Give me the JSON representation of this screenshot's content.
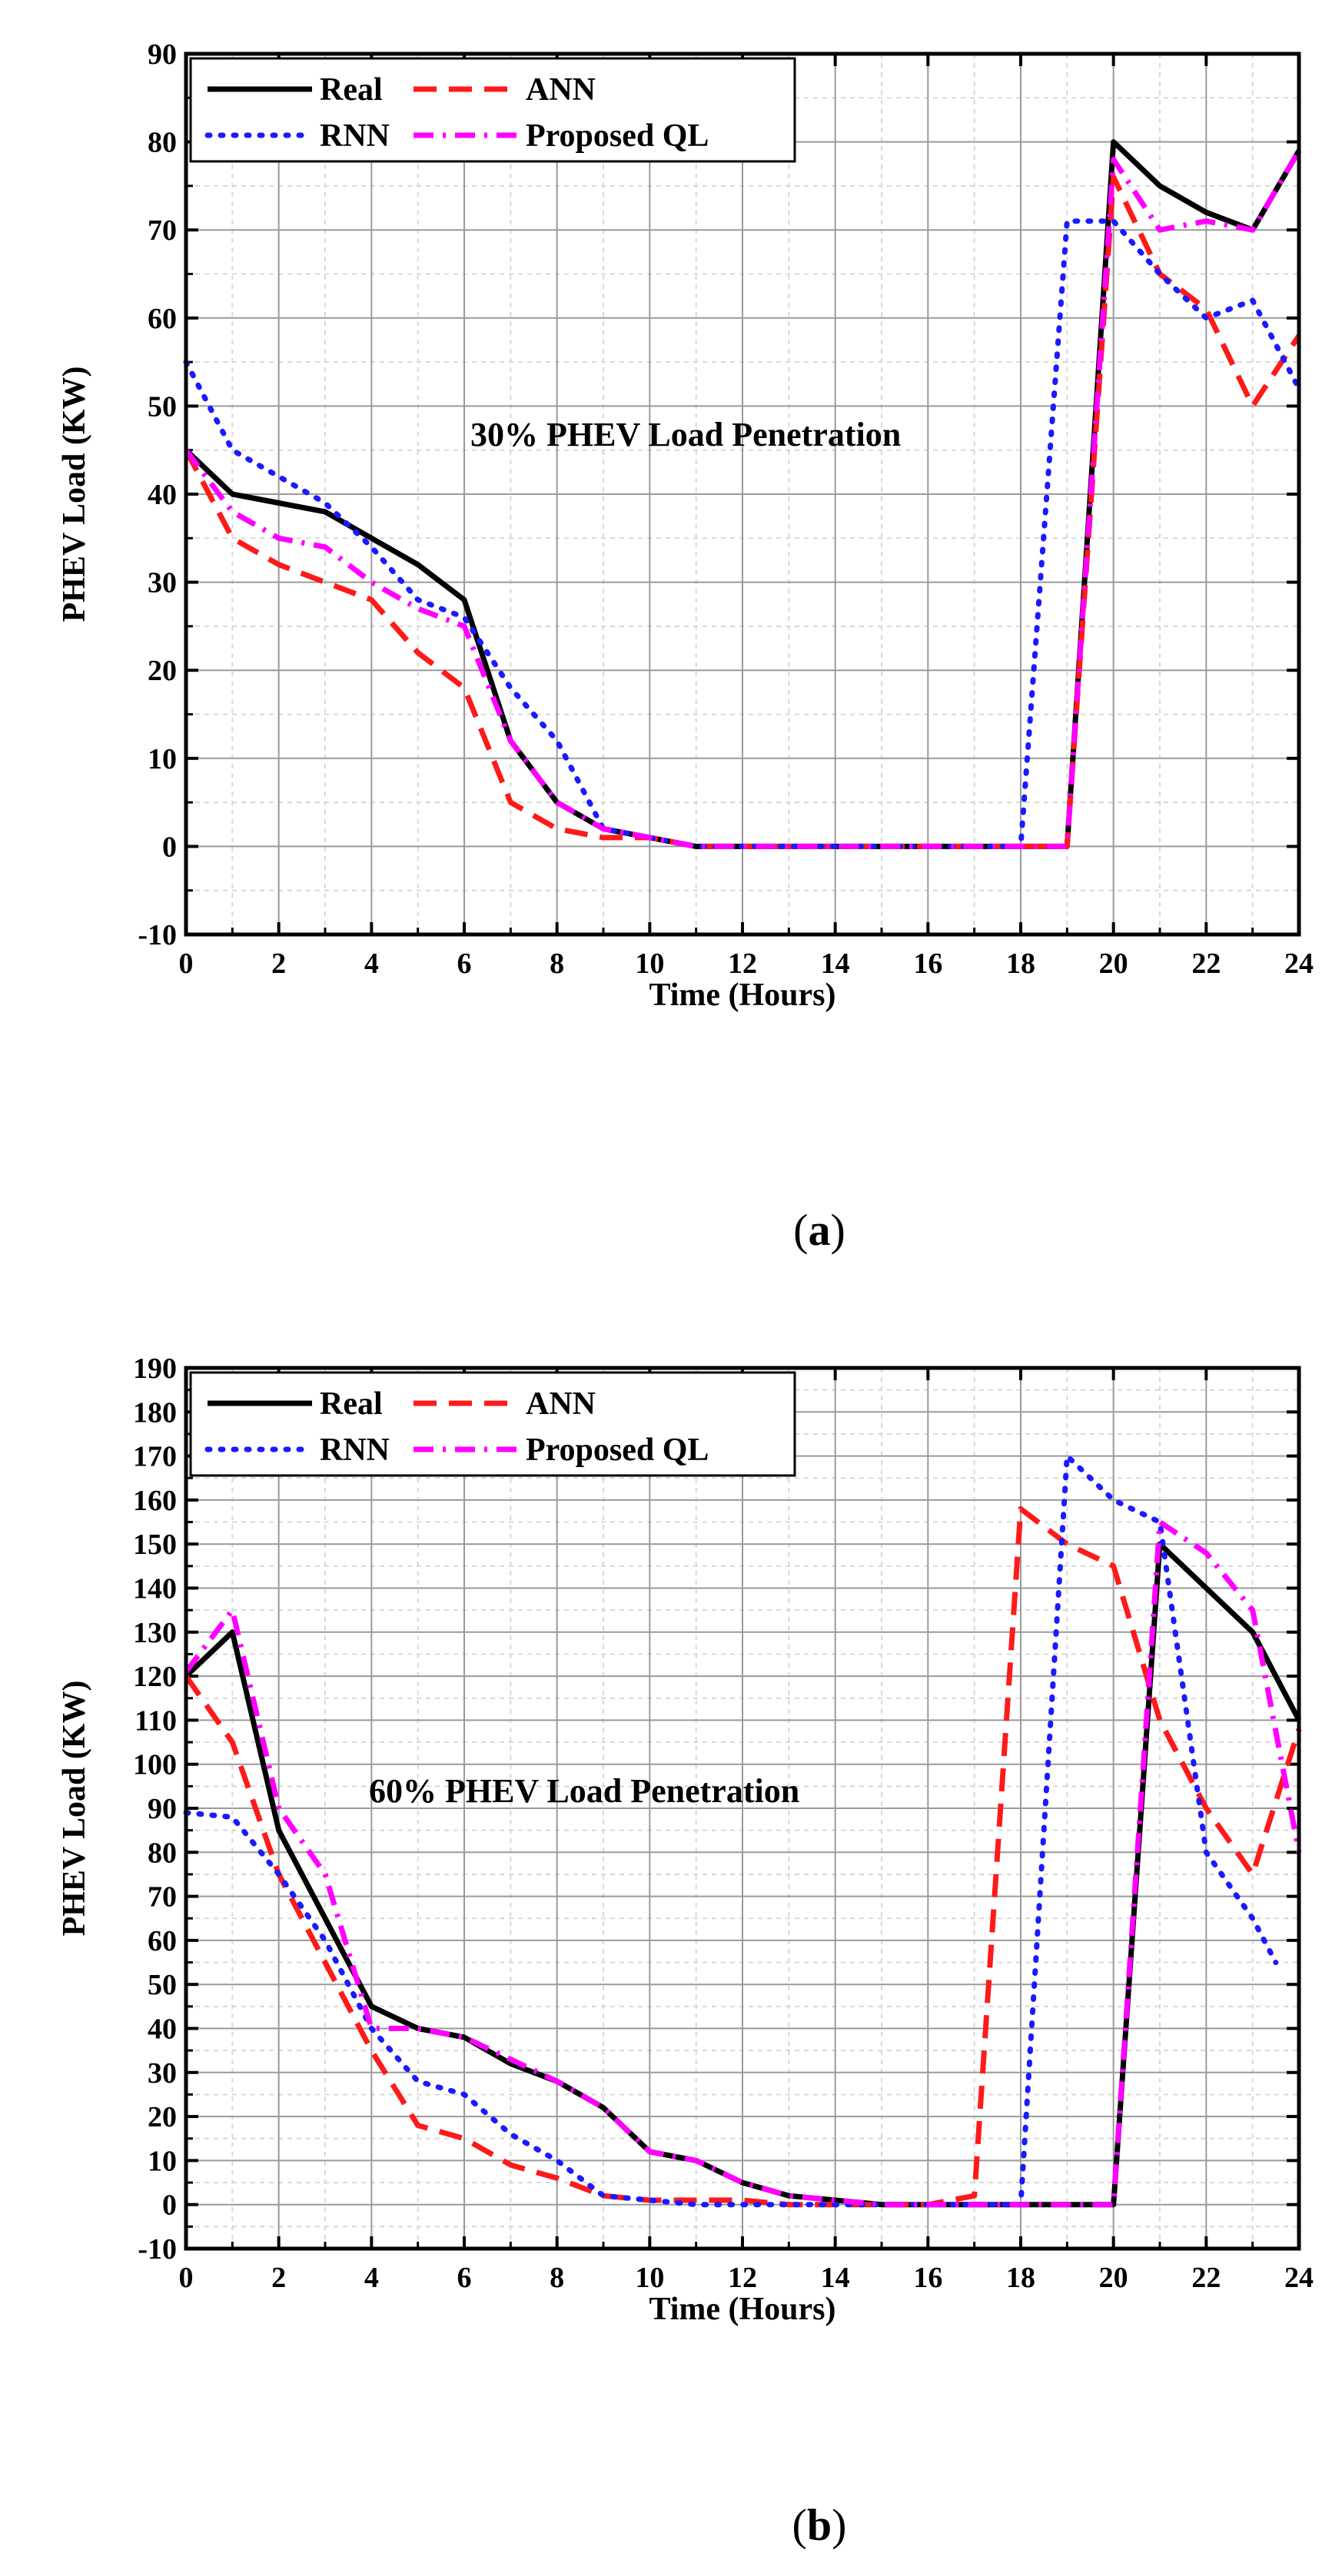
{
  "colors": {
    "Real": "#000000",
    "ANN": "#ff1a1a",
    "RNN": "#1a1aff",
    "Proposed QL": "#ff00ff",
    "grid_major": "#9a9a9a",
    "grid_minor": "#d8d8d8"
  },
  "chart_data": [
    {
      "type": "line",
      "panel": "a",
      "caption": "(a)",
      "caption_letter": "a",
      "annotation": "30% PHEV Load Penetration",
      "xlabel": "Time (Hours)",
      "ylabel": "PHEV Load (KW)",
      "xlim": [
        0,
        24
      ],
      "ylim": [
        -10,
        90
      ],
      "xticks": [
        0,
        2,
        4,
        6,
        8,
        10,
        12,
        14,
        16,
        18,
        20,
        22,
        24
      ],
      "yticks": [
        -10,
        0,
        10,
        20,
        30,
        40,
        50,
        60,
        70,
        80,
        90
      ],
      "grid": true,
      "legend": [
        "Real",
        "ANN",
        "RNN",
        "Proposed QL"
      ],
      "legend_position": "top-left",
      "series": [
        {
          "name": "Real",
          "style": "solid",
          "x": [
            0,
            1,
            2,
            3,
            4,
            5,
            6,
            7,
            8,
            9,
            10,
            11,
            12,
            13,
            14,
            15,
            16,
            17,
            18,
            19,
            20,
            21,
            22,
            23,
            24
          ],
          "values": [
            45,
            40,
            39,
            38,
            35,
            32,
            28,
            12,
            5,
            2,
            1,
            0,
            0,
            0,
            0,
            0,
            0,
            0,
            0,
            0,
            80,
            75,
            72,
            70,
            79
          ]
        },
        {
          "name": "ANN",
          "style": "dash",
          "x": [
            0,
            1,
            2,
            3,
            4,
            5,
            6,
            7,
            8,
            9,
            10,
            11,
            12,
            13,
            14,
            15,
            16,
            17,
            18,
            19,
            20,
            21,
            22,
            23,
            24
          ],
          "values": [
            45,
            35,
            32,
            30,
            28,
            22,
            18,
            5,
            2,
            1,
            1,
            0,
            0,
            0,
            0,
            0,
            0,
            0,
            0,
            0,
            76,
            65,
            61,
            50,
            58
          ]
        },
        {
          "name": "RNN",
          "style": "dot",
          "x": [
            0,
            1,
            2,
            3,
            4,
            5,
            6,
            7,
            8,
            9,
            10,
            11,
            12,
            13,
            14,
            15,
            16,
            17,
            18,
            19,
            20,
            21,
            22,
            23,
            24
          ],
          "values": [
            55,
            45,
            42,
            39,
            34,
            28,
            26,
            18,
            12,
            2,
            1,
            0,
            0,
            0,
            0,
            0,
            0,
            0,
            0,
            71,
            71,
            65,
            60,
            62,
            52
          ]
        },
        {
          "name": "Proposed QL",
          "style": "dashdot",
          "x": [
            0,
            1,
            2,
            3,
            4,
            5,
            6,
            7,
            8,
            9,
            10,
            11,
            12,
            13,
            14,
            15,
            16,
            17,
            18,
            19,
            20,
            21,
            22,
            23,
            24
          ],
          "values": [
            45,
            38,
            35,
            34,
            30,
            27,
            25,
            12,
            5,
            2,
            1,
            0,
            0,
            0,
            0,
            0,
            0,
            0,
            0,
            0,
            78,
            70,
            71,
            70,
            79
          ]
        }
      ]
    },
    {
      "type": "line",
      "panel": "b",
      "caption": "(b)",
      "caption_letter": "b",
      "annotation": "60% PHEV Load Penetration",
      "xlabel": "Time (Hours)",
      "ylabel": "PHEV Load (KW)",
      "xlim": [
        0,
        24
      ],
      "ylim": [
        -10,
        190
      ],
      "xticks": [
        0,
        2,
        4,
        6,
        8,
        10,
        12,
        14,
        16,
        18,
        20,
        22,
        24
      ],
      "yticks": [
        -10,
        0,
        10,
        20,
        30,
        40,
        50,
        60,
        70,
        80,
        90,
        100,
        110,
        120,
        130,
        140,
        150,
        160,
        170,
        180,
        190
      ],
      "grid": true,
      "legend": [
        "Real",
        "ANN",
        "RNN",
        "Proposed QL"
      ],
      "legend_position": "top-left",
      "series": [
        {
          "name": "Real",
          "style": "solid",
          "x": [
            0,
            1,
            2,
            3,
            4,
            5,
            6,
            7,
            8,
            9,
            10,
            11,
            12,
            13,
            14,
            15,
            16,
            17,
            18,
            19,
            20,
            21,
            22,
            23,
            24
          ],
          "values": [
            120,
            130,
            85,
            65,
            45,
            40,
            38,
            32,
            28,
            22,
            12,
            10,
            5,
            2,
            1,
            0,
            0,
            0,
            0,
            0,
            0,
            150,
            140,
            130,
            110
          ]
        },
        {
          "name": "ANN",
          "style": "dash",
          "x": [
            0,
            1,
            2,
            3,
            4,
            5,
            6,
            7,
            8,
            9,
            10,
            11,
            12,
            13,
            14,
            15,
            16,
            17,
            18,
            19,
            20,
            21,
            22,
            23,
            24
          ],
          "values": [
            120,
            105,
            75,
            55,
            35,
            18,
            15,
            9,
            6,
            2,
            1,
            1,
            1,
            0,
            0,
            0,
            0,
            2,
            158,
            150,
            145,
            110,
            90,
            75,
            108
          ]
        },
        {
          "name": "RNN",
          "style": "dot",
          "x": [
            0,
            1,
            2,
            3,
            4,
            5,
            6,
            7,
            8,
            9,
            10,
            11,
            12,
            13,
            14,
            15,
            16,
            17,
            18,
            19,
            20,
            21,
            22,
            23,
            23.5
          ],
          "values": [
            89,
            88,
            75,
            60,
            40,
            28,
            25,
            16,
            10,
            2,
            1,
            0,
            0,
            0,
            0,
            0,
            0,
            0,
            0,
            170,
            160,
            155,
            80,
            65,
            55
          ]
        },
        {
          "name": "Proposed QL",
          "style": "dashdot",
          "x": [
            0,
            1,
            2,
            3,
            4,
            5,
            6,
            7,
            8,
            9,
            10,
            11,
            12,
            13,
            14,
            15,
            16,
            17,
            18,
            19,
            20,
            21,
            22,
            23,
            24
          ],
          "values": [
            121,
            135,
            90,
            75,
            40,
            40,
            38,
            33,
            28,
            22,
            12,
            10,
            5,
            2,
            1,
            0,
            0,
            0,
            0,
            0,
            0,
            155,
            148,
            135,
            80
          ]
        }
      ]
    }
  ]
}
